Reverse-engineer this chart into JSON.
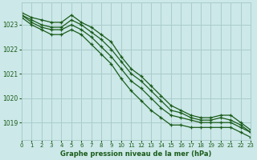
{
  "title": "Graphe pression niveau de la mer (hPa)",
  "xlim": [
    0,
    23
  ],
  "ylim": [
    1018.3,
    1023.9
  ],
  "yticks": [
    1019,
    1020,
    1021,
    1022,
    1023
  ],
  "xticks": [
    0,
    1,
    2,
    3,
    4,
    5,
    6,
    7,
    8,
    9,
    10,
    11,
    12,
    13,
    14,
    15,
    16,
    17,
    18,
    19,
    20,
    21,
    22,
    23
  ],
  "background_color": "#cce8e8",
  "grid_color": "#aacccc",
  "line_color": "#1a5c1a",
  "series": [
    [
      1023.5,
      1023.3,
      1023.2,
      1023.1,
      1023.1,
      1023.4,
      1023.1,
      1022.9,
      1022.6,
      1022.3,
      1021.7,
      1021.2,
      1020.9,
      1020.5,
      1020.1,
      1019.7,
      1019.5,
      1019.3,
      1019.2,
      1019.2,
      1019.3,
      1019.3,
      1019.0,
      1018.7
    ],
    [
      1023.4,
      1023.2,
      1023.0,
      1022.9,
      1022.9,
      1023.2,
      1023.0,
      1022.7,
      1022.4,
      1022.0,
      1021.5,
      1021.0,
      1020.7,
      1020.3,
      1019.9,
      1019.5,
      1019.4,
      1019.2,
      1019.1,
      1019.1,
      1019.2,
      1019.1,
      1018.9,
      1018.6
    ],
    [
      1023.4,
      1023.1,
      1022.9,
      1022.8,
      1022.8,
      1023.0,
      1022.8,
      1022.5,
      1022.1,
      1021.7,
      1021.2,
      1020.7,
      1020.4,
      1020.0,
      1019.6,
      1019.3,
      1019.2,
      1019.1,
      1019.0,
      1019.0,
      1019.0,
      1019.0,
      1018.8,
      1018.6
    ],
    [
      1023.3,
      1023.0,
      1022.8,
      1022.6,
      1022.6,
      1022.8,
      1022.6,
      1022.2,
      1021.8,
      1021.4,
      1020.8,
      1020.3,
      1019.9,
      1019.5,
      1019.2,
      1018.9,
      1018.9,
      1018.8,
      1018.8,
      1018.8,
      1018.8,
      1018.8,
      1018.6,
      1018.4
    ]
  ],
  "figsize": [
    3.2,
    2.0
  ],
  "dpi": 100
}
